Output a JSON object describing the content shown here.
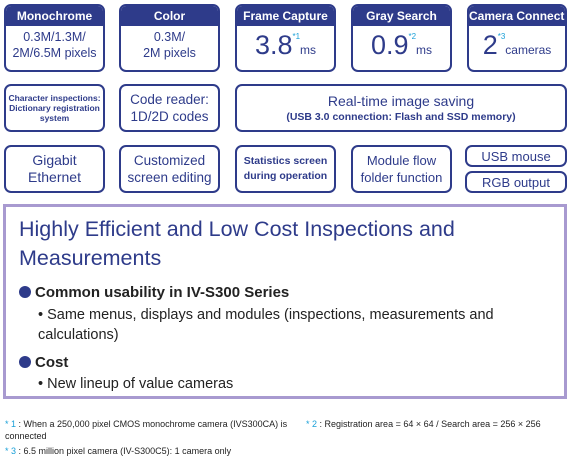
{
  "specs": [
    {
      "title": "Monochrome",
      "lines": [
        "0.3M/1.3M/",
        "2M/6.5M pixels"
      ]
    },
    {
      "title": "Color",
      "lines": [
        "0.3M/",
        "2M pixels"
      ]
    },
    {
      "title": "Frame Capture",
      "value": "3.8",
      "unit": "ms",
      "ref": "*1"
    },
    {
      "title": "Gray Search",
      "value": "0.9",
      "unit": "ms",
      "ref": "*2"
    },
    {
      "title": "Camera Connection",
      "value": "2",
      "unit": "cameras",
      "ref": "*3"
    }
  ],
  "features": {
    "char_inspection": [
      "Character inspections:",
      "Dictionary registration",
      "system"
    ],
    "code_reader": [
      "Code reader:",
      "1D/2D codes"
    ],
    "realtime_saving": [
      "Real-time image saving",
      "(USB 3.0 connection: Flash and SSD memory)"
    ],
    "gigabit": [
      "Gigabit",
      "Ethernet"
    ],
    "custom_screen": [
      "Customized",
      "screen editing"
    ],
    "statistics": [
      "Statistics screen",
      "during operation"
    ],
    "module_flow": [
      "Module flow",
      "folder function"
    ],
    "usb_mouse": "USB mouse",
    "rgb_output": "RGB output"
  },
  "panel": {
    "title": "Highly Efficient and Low Cost Inspections and Measurements",
    "sections": [
      {
        "heading": "Common usability in IV-S300 Series",
        "bullet": "• Same menus, displays and modules (inspections, measurements and calculations)"
      },
      {
        "heading": "Cost",
        "bullet": "• New lineup of value cameras"
      }
    ]
  },
  "footnotes": {
    "n1_ref": "* 1",
    "n1_text": ": When a 250,000 pixel CMOS monochrome camera (IVS300CA) is connected",
    "n2_ref": "* 2",
    "n2_text": ": Registration area = 64 × 64 / Search area = 256 × 256",
    "n3_ref": "* 3",
    "n3_text": ": 6.5 million pixel camera (IV-S300C5): 1 camera only"
  },
  "colors": {
    "navy": "#2e3b8a",
    "lavender": "#a89ad0",
    "note_blue": "#1aa0d8"
  }
}
